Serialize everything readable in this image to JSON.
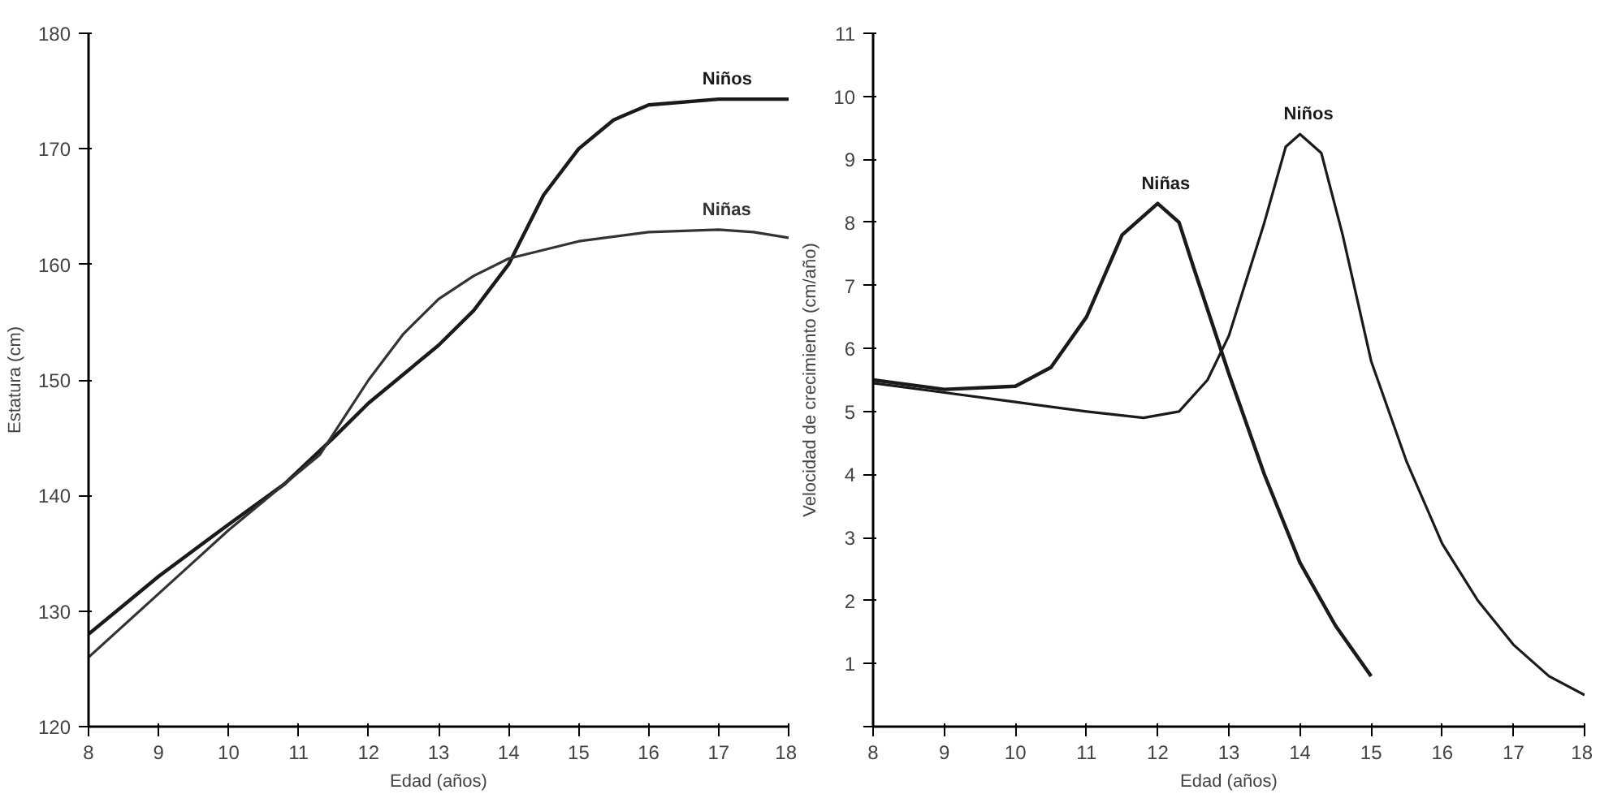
{
  "chart_data": [
    {
      "type": "line",
      "xlabel": "Edad (años)",
      "ylabel": "Estatura (cm)",
      "xlim": [
        8,
        18
      ],
      "ylim": [
        120,
        180
      ],
      "xticks": [
        8,
        9,
        10,
        11,
        12,
        13,
        14,
        15,
        16,
        17,
        18
      ],
      "yticks": [
        120,
        130,
        140,
        150,
        160,
        170,
        180
      ],
      "grid": false,
      "legend": false,
      "series": [
        {
          "name": "Niños",
          "color": "#1a1a1a",
          "x": [
            8,
            9,
            10,
            10.8,
            11.5,
            12,
            13,
            13.5,
            14,
            14.5,
            15,
            15.5,
            16,
            17,
            18
          ],
          "values": [
            128,
            133,
            137.5,
            141,
            145,
            148,
            153,
            156,
            160,
            166,
            170,
            172.5,
            173.8,
            174.3,
            174.3
          ]
        },
        {
          "name": "Niñas",
          "color": "#333333",
          "x": [
            8,
            9,
            10,
            10.8,
            11.3,
            12,
            12.5,
            13,
            13.5,
            14,
            15,
            16,
            17,
            17.5,
            18
          ],
          "values": [
            126,
            131.5,
            137,
            141,
            143.5,
            150,
            154,
            157,
            159,
            160.5,
            162,
            162.8,
            163,
            162.8,
            162.3
          ]
        }
      ]
    },
    {
      "type": "line",
      "xlabel": "Edad (años)",
      "ylabel": "Velocidad de crecimiento (cm/año)",
      "xlim": [
        8,
        18
      ],
      "ylim": [
        0,
        11
      ],
      "xticks": [
        8,
        9,
        10,
        11,
        12,
        13,
        14,
        15,
        16,
        17,
        18
      ],
      "yticks": [
        {
          "value": 0,
          "label": null
        },
        1,
        2,
        3,
        4,
        5,
        6,
        7,
        8,
        9,
        10,
        11
      ],
      "grid": false,
      "legend": false,
      "series": [
        {
          "name": "Niñas",
          "color": "#1a1a1a",
          "x": [
            8,
            9,
            10,
            10.5,
            11,
            11.5,
            12,
            12.3,
            12.5,
            13,
            13.5,
            14,
            14.5,
            15
          ],
          "values": [
            5.5,
            5.35,
            5.4,
            5.7,
            6.5,
            7.8,
            8.3,
            8.0,
            7.3,
            5.6,
            4.0,
            2.6,
            1.6,
            0.8
          ]
        },
        {
          "name": "Niños",
          "color": "#1a1a1a",
          "x": [
            8,
            9,
            10,
            11,
            11.8,
            12.3,
            12.7,
            13,
            13.5,
            13.8,
            14,
            14.3,
            14.6,
            15,
            15.5,
            16,
            16.5,
            17,
            17.5,
            18
          ],
          "values": [
            5.45,
            5.3,
            5.15,
            5.0,
            4.9,
            5.0,
            5.5,
            6.2,
            8.0,
            9.2,
            9.4,
            9.1,
            7.8,
            5.8,
            4.2,
            2.9,
            2.0,
            1.3,
            0.8,
            0.5
          ]
        }
      ]
    }
  ]
}
